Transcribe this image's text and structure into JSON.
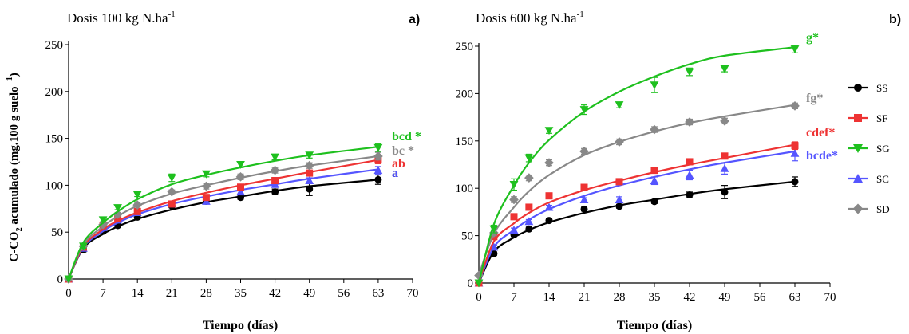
{
  "chart_data": [
    {
      "type": "scatter",
      "panel_label": "a)",
      "title": "Dosis 100 kg N.ha",
      "title_sup": "-1",
      "xlabel": "Tiempo (días)",
      "ylabel": "C-CO2 acumulado (mg.100 g suelo -1)",
      "ylabel_parts": [
        "C-CO",
        "2",
        " acumulado (mg.100 g suelo ",
        "-1",
        ")"
      ],
      "xlim": [
        0,
        70
      ],
      "ylim": [
        0,
        250
      ],
      "xticks": [
        "0",
        "7",
        "14",
        "21",
        "28",
        "35",
        "42",
        "49",
        "56",
        "63",
        "70"
      ],
      "yticks": [
        "0",
        "50",
        "100",
        "150",
        "200",
        "250"
      ],
      "x": [
        0,
        3,
        7,
        10,
        14,
        21,
        28,
        35,
        42,
        49,
        63
      ],
      "series": [
        {
          "key": "SS",
          "color": "#000000",
          "marker": "circle",
          "values": [
            0,
            31,
            51,
            57,
            66,
            78,
            83,
            87,
            93,
            96,
            106
          ],
          "err": [
            0,
            2,
            2,
            2,
            2,
            2,
            2,
            2,
            3,
            7,
            5
          ],
          "fit": [
            0,
            33,
            48,
            56,
            64,
            74,
            82,
            88,
            94,
            99,
            106
          ],
          "end_label": "a"
        },
        {
          "key": "SC",
          "color": "#5555ff",
          "marker": "triangle-up",
          "values": [
            0,
            33,
            55,
            63,
            71,
            80,
            83,
            93,
            101,
            105,
            116
          ],
          "err": [
            0,
            2,
            2,
            2,
            2,
            2,
            3,
            3,
            3,
            3,
            4
          ],
          "fit": [
            0,
            34,
            51,
            60,
            69,
            80,
            88,
            95,
            101,
            107,
            117
          ],
          "end_label": "a"
        },
        {
          "key": "SF",
          "color": "#ee3333",
          "marker": "square",
          "values": [
            0,
            34,
            57,
            65,
            72,
            80,
            87,
            98,
            105,
            113,
            127
          ],
          "err": [
            0,
            2,
            2,
            2,
            2,
            2,
            2,
            3,
            3,
            3,
            4
          ],
          "fit": [
            0,
            35,
            53,
            62,
            71,
            83,
            92,
            100,
            107,
            114,
            127
          ],
          "end_label": "ab"
        },
        {
          "key": "SD",
          "color": "#888888",
          "marker": "diamond",
          "values": [
            0,
            35,
            58,
            69,
            79,
            93,
            99,
            109,
            116,
            121,
            131
          ],
          "err": [
            0,
            2,
            2,
            2,
            2,
            2,
            3,
            3,
            3,
            3,
            4
          ],
          "fit": [
            0,
            37,
            56,
            67,
            78,
            91,
            100,
            108,
            115,
            121,
            131
          ],
          "end_label": "bc *"
        },
        {
          "key": "SG",
          "color": "#1ec01e",
          "marker": "triangle-down",
          "values": [
            0,
            35,
            63,
            76,
            90,
            108,
            112,
            122,
            130,
            132,
            140
          ],
          "err": [
            0,
            2,
            2,
            2,
            2,
            4,
            3,
            3,
            3,
            3,
            4
          ],
          "fit": [
            0,
            39,
            60,
            72,
            85,
            101,
            111,
            119,
            126,
            132,
            141
          ],
          "end_label": "bcd *"
        }
      ]
    },
    {
      "type": "scatter",
      "panel_label": "b)",
      "title": "Dosis 600 kg N.ha",
      "title_sup": "-1",
      "xlabel": "Tiempo (días)",
      "ylabel": "",
      "xlim": [
        0,
        70
      ],
      "ylim": [
        0,
        250
      ],
      "xticks": [
        "0",
        "7",
        "14",
        "21",
        "28",
        "35",
        "42",
        "49",
        "56",
        "63",
        "70"
      ],
      "yticks": [
        "0",
        "50",
        "100",
        "150",
        "200",
        "250"
      ],
      "x": [
        0,
        3,
        7,
        10,
        14,
        21,
        28,
        35,
        42,
        49,
        63
      ],
      "series": [
        {
          "key": "SS",
          "color": "#000000",
          "marker": "circle",
          "values": [
            0,
            31,
            51,
            57,
            66,
            78,
            81,
            86,
            93,
            96,
            107
          ],
          "err": [
            0,
            2,
            2,
            2,
            2,
            2,
            2,
            2,
            3,
            7,
            5
          ],
          "fit": [
            0,
            33,
            48,
            56,
            64,
            74,
            82,
            88,
            94,
            99,
            107
          ],
          "end_label": ""
        },
        {
          "key": "SC",
          "color": "#5555ff",
          "marker": "triangle-up",
          "values": [
            0,
            38,
            56,
            65,
            80,
            88,
            88,
            108,
            114,
            121,
            137
          ],
          "err": [
            0,
            2,
            2,
            2,
            2,
            2,
            3,
            4,
            5,
            6,
            8
          ],
          "fit": [
            0,
            38,
            56,
            67,
            78,
            92,
            103,
            112,
            120,
            127,
            139
          ],
          "end_label": "bcde*"
        },
        {
          "key": "SF",
          "color": "#ee3333",
          "marker": "square",
          "values": [
            0,
            49,
            70,
            80,
            92,
            101,
            107,
            119,
            128,
            134,
            145
          ],
          "err": [
            0,
            2,
            2,
            2,
            2,
            2,
            2,
            3,
            3,
            3,
            4
          ],
          "fit": [
            0,
            44,
            63,
            74,
            85,
            98,
            108,
            117,
            125,
            132,
            146
          ],
          "end_label": "cdef*"
        },
        {
          "key": "SD",
          "color": "#888888",
          "marker": "diamond",
          "values": [
            8,
            53,
            88,
            111,
            127,
            139,
            149,
            162,
            170,
            171,
            187
          ],
          "err": [
            0,
            3,
            3,
            3,
            3,
            3,
            3,
            3,
            3,
            3,
            3
          ],
          "fit": [
            8,
            52,
            80,
            97,
            114,
            135,
            149,
            160,
            169,
            176,
            188
          ],
          "end_label": "fg*"
        },
        {
          "key": "SG",
          "color": "#1ec01e",
          "marker": "triangle-down",
          "values": [
            0,
            57,
            104,
            132,
            161,
            183,
            188,
            209,
            223,
            226,
            247
          ],
          "err": [
            0,
            4,
            6,
            4,
            3,
            5,
            3,
            8,
            4,
            3,
            4
          ],
          "fit": [
            0,
            62,
            103,
            127,
            151,
            181,
            202,
            218,
            231,
            240,
            249
          ],
          "end_label": "g*"
        }
      ]
    }
  ],
  "legend": {
    "placement": "right",
    "items": [
      {
        "label": "SS",
        "color": "#000000",
        "marker": "circle"
      },
      {
        "label": "SF",
        "color": "#ee3333",
        "marker": "square"
      },
      {
        "label": "SG",
        "color": "#1ec01e",
        "marker": "triangle-down"
      },
      {
        "label": "SC",
        "color": "#5555ff",
        "marker": "triangle-up"
      },
      {
        "label": "SD",
        "color": "#888888",
        "marker": "diamond"
      }
    ]
  }
}
